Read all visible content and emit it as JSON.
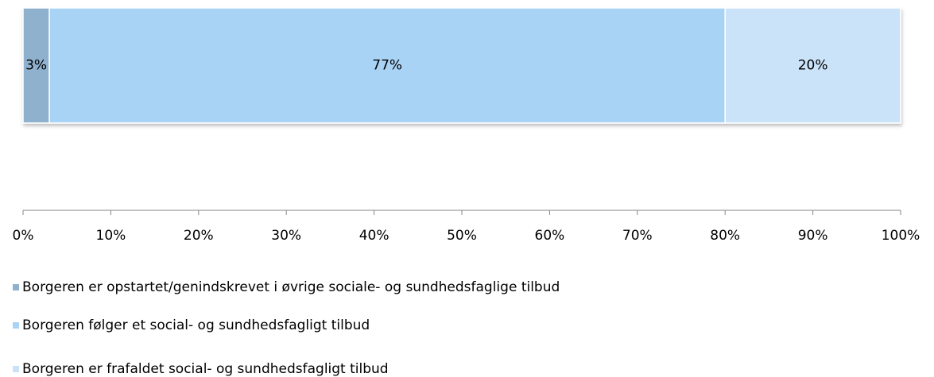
{
  "chart_data": {
    "type": "stacked-bar-horizontal",
    "categories": [
      null
    ],
    "series": [
      {
        "name": "Borgeren er opstartet/genindskrevet i øvrige sociale- og sundhedsfaglige tilbud",
        "color": "#8fb1cd",
        "values": [
          3
        ],
        "value_labels": [
          "3%"
        ]
      },
      {
        "name": "Borgeren følger et social- og sundhedsfagligt tilbud",
        "color": "#a9d3f5",
        "values": [
          77
        ],
        "value_labels": [
          "77%"
        ]
      },
      {
        "name": "Borgeren er frafaldet social- og sundhedsfagligt tilbud",
        "color": "#cae3f9",
        "values": [
          20
        ],
        "value_labels": [
          "20%"
        ]
      }
    ],
    "xlim": [
      0,
      100
    ],
    "xticks": [
      {
        "value": 0,
        "label": "0%"
      },
      {
        "value": 10,
        "label": "10%"
      },
      {
        "value": 20,
        "label": "20%"
      },
      {
        "value": 30,
        "label": "30%"
      },
      {
        "value": 40,
        "label": "40%"
      },
      {
        "value": 50,
        "label": "50%"
      },
      {
        "value": 60,
        "label": "60%"
      },
      {
        "value": 70,
        "label": "70%"
      },
      {
        "value": 80,
        "label": "80%"
      },
      {
        "value": 90,
        "label": "90%"
      },
      {
        "value": 100,
        "label": "100%"
      }
    ],
    "legend": "bottom-left"
  }
}
